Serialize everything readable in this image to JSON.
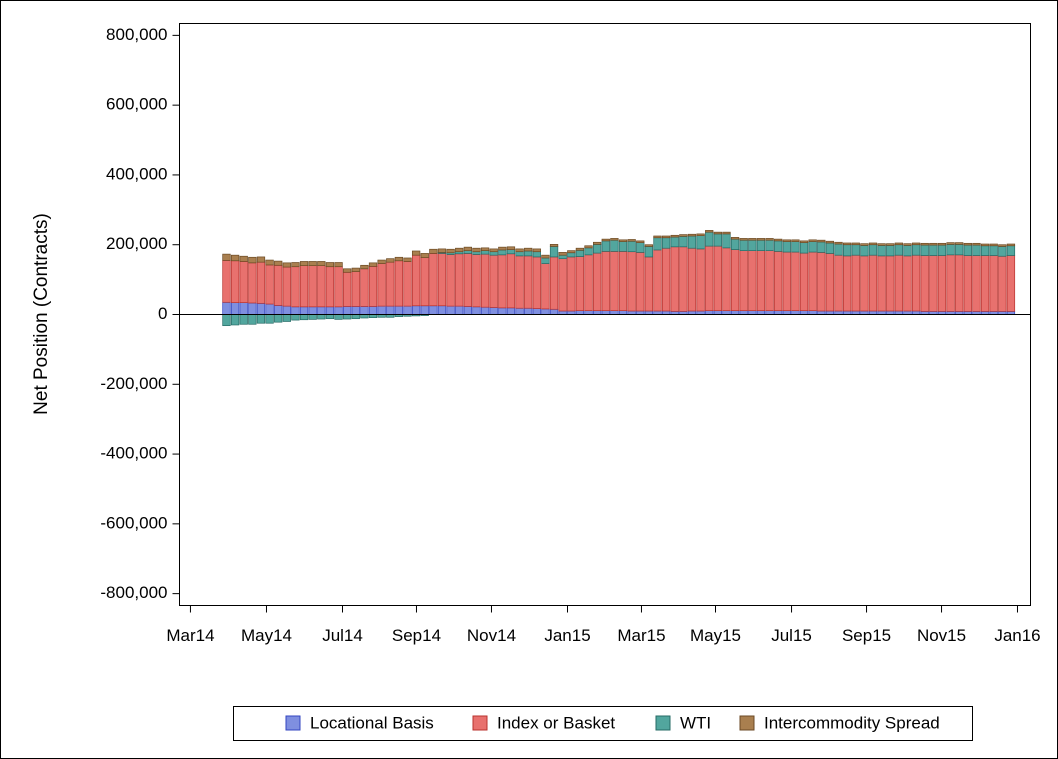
{
  "chart_data": {
    "type": "stacked_bar",
    "ylabel": "Net Position (Contracts)",
    "categories": [
      null,
      null,
      null,
      null,
      null,
      null,
      null,
      null,
      null,
      null,
      null,
      null,
      null,
      null,
      null,
      null,
      null,
      null,
      null,
      null,
      null,
      null,
      null,
      null,
      null,
      null,
      null,
      null,
      null,
      null,
      null,
      null,
      null,
      null,
      null,
      null,
      null,
      null,
      null,
      null,
      null,
      null,
      null,
      null,
      null,
      null,
      null,
      null,
      null,
      null,
      null,
      null,
      null,
      null,
      null,
      null,
      null,
      null,
      null,
      null,
      null,
      null,
      null,
      null,
      null,
      null,
      null,
      null,
      null,
      null,
      null,
      null,
      null,
      null,
      null,
      null,
      null,
      null,
      null,
      null,
      null,
      null,
      null,
      null,
      null,
      null,
      null,
      null,
      null,
      null,
      null,
      null
    ],
    "xlim": [
      -5.45,
      93.27
    ],
    "xticks": [
      {
        "value": -4.18,
        "label": "Mar14"
      },
      {
        "value": 4.64,
        "label": "May14"
      },
      {
        "value": 13.46,
        "label": "Jul14"
      },
      {
        "value": 22.04,
        "label": "Sep14"
      },
      {
        "value": 30.74,
        "label": "Nov14"
      },
      {
        "value": 39.56,
        "label": "Jan15"
      },
      {
        "value": 48.14,
        "label": "Mar15"
      },
      {
        "value": 56.73,
        "label": "May15"
      },
      {
        "value": 65.55,
        "label": "Jul15"
      },
      {
        "value": 74.25,
        "label": "Sep15"
      },
      {
        "value": 82.95,
        "label": "Nov15"
      },
      {
        "value": 91.76,
        "label": "Jan16"
      }
    ],
    "ylim": [
      -834000,
      834000
    ],
    "yticks": [
      {
        "value": -800000,
        "label": "-800,000"
      },
      {
        "value": -600000,
        "label": "-600,000"
      },
      {
        "value": -400000,
        "label": "-400,000"
      },
      {
        "value": -200000,
        "label": "-200,000"
      },
      0,
      {
        "value": 200000,
        "label": "200,000"
      },
      {
        "value": 400000,
        "label": "400,000"
      },
      {
        "value": 600000,
        "label": "600,000"
      },
      {
        "value": 800000,
        "label": "800,000"
      }
    ],
    "series": [
      {
        "name": "Locational Basis",
        "color": "#7f8fe0",
        "edge": "#3346c0",
        "values": [
          35000,
          34000,
          34000,
          33000,
          32000,
          30000,
          26000,
          24000,
          22000,
          22000,
          22000,
          22000,
          22000,
          22000,
          23000,
          23000,
          23000,
          23000,
          24000,
          24000,
          24000,
          24000,
          25000,
          25000,
          25000,
          25000,
          24000,
          24000,
          23000,
          22000,
          21000,
          20000,
          19000,
          19000,
          18000,
          18000,
          17000,
          16000,
          15000,
          10000,
          10000,
          11000,
          11000,
          11000,
          11000,
          11000,
          11000,
          10000,
          10000,
          10000,
          10000,
          10000,
          9000,
          9000,
          10000,
          10000,
          11000,
          11000,
          11000,
          11000,
          11000,
          11000,
          11000,
          11000,
          11000,
          11000,
          11000,
          11000,
          11000,
          10000,
          10000,
          10000,
          10000,
          10000,
          10000,
          10000,
          10000,
          10000,
          10000,
          10000,
          10000,
          9000,
          9000,
          9000,
          9000,
          9000,
          9000,
          9000,
          9000,
          9000,
          9000,
          9000
        ]
      },
      {
        "name": "Index or Basket",
        "color": "#e8716e",
        "edge": "#b8322e",
        "values": [
          120000,
          120000,
          118000,
          115000,
          118000,
          112000,
          115000,
          112000,
          115000,
          118000,
          118000,
          118000,
          115000,
          115000,
          98000,
          100000,
          108000,
          115000,
          122000,
          126000,
          130000,
          128000,
          145000,
          138000,
          150000,
          150000,
          148000,
          150000,
          152000,
          150000,
          152000,
          150000,
          152000,
          155000,
          150000,
          150000,
          148000,
          130000,
          150000,
          150000,
          155000,
          155000,
          160000,
          165000,
          170000,
          170000,
          170000,
          170000,
          168000,
          155000,
          175000,
          180000,
          185000,
          185000,
          180000,
          178000,
          185000,
          185000,
          180000,
          175000,
          172000,
          172000,
          172000,
          172000,
          170000,
          168000,
          168000,
          165000,
          168000,
          168000,
          165000,
          160000,
          158000,
          160000,
          158000,
          160000,
          158000,
          158000,
          160000,
          158000,
          160000,
          160000,
          160000,
          160000,
          162000,
          162000,
          160000,
          160000,
          160000,
          160000,
          158000,
          160000
        ]
      },
      {
        "name": "WTI",
        "color": "#52a69e",
        "edge": "#266b66",
        "values": [
          -32000,
          -30000,
          -28000,
          -28000,
          -25000,
          -25000,
          -22000,
          -20000,
          -16000,
          -15000,
          -14000,
          -13000,
          -12000,
          -14000,
          -13000,
          -12000,
          -10000,
          -9000,
          -8000,
          -8000,
          -6000,
          -5000,
          -4000,
          -3000,
          0,
          3000,
          5000,
          6000,
          8000,
          8000,
          10000,
          10000,
          14000,
          12000,
          12000,
          14000,
          15000,
          16000,
          30000,
          10000,
          12000,
          18000,
          20000,
          25000,
          30000,
          32000,
          28000,
          30000,
          28000,
          30000,
          35000,
          30000,
          28000,
          30000,
          35000,
          38000,
          40000,
          35000,
          40000,
          30000,
          30000,
          30000,
          30000,
          30000,
          30000,
          30000,
          30000,
          30000,
          30000,
          30000,
          30000,
          32000,
          32000,
          30000,
          30000,
          30000,
          30000,
          30000,
          30000,
          30000,
          30000,
          30000,
          30000,
          30000,
          30000,
          30000,
          30000,
          30000,
          28000,
          28000,
          28000,
          28000
        ]
      },
      {
        "name": "Intercommodity Spread",
        "color": "#a97f4f",
        "edge": "#6b4a24",
        "values": [
          18000,
          16000,
          15000,
          16000,
          15000,
          14000,
          12000,
          12000,
          12000,
          12000,
          12000,
          12000,
          12000,
          12000,
          10000,
          10000,
          10000,
          10000,
          10000,
          10000,
          10000,
          10000,
          12000,
          12000,
          12000,
          10000,
          10000,
          10000,
          10000,
          10000,
          8000,
          8000,
          8000,
          8000,
          8000,
          8000,
          8000,
          8000,
          6000,
          8000,
          6000,
          6000,
          6000,
          6000,
          5000,
          5000,
          5000,
          5000,
          5000,
          5000,
          5000,
          5000,
          5000,
          5000,
          5000,
          5000,
          5000,
          5000,
          5000,
          5000,
          5000,
          5000,
          5000,
          5000,
          5000,
          5000,
          5000,
          5000,
          5000,
          5000,
          5000,
          5000,
          5000,
          5000,
          5000,
          5000,
          5000,
          5000,
          5000,
          5000,
          5000,
          5000,
          5000,
          5000,
          5000,
          5000,
          5000,
          5000,
          5000,
          5000,
          5000,
          5000
        ]
      }
    ]
  }
}
